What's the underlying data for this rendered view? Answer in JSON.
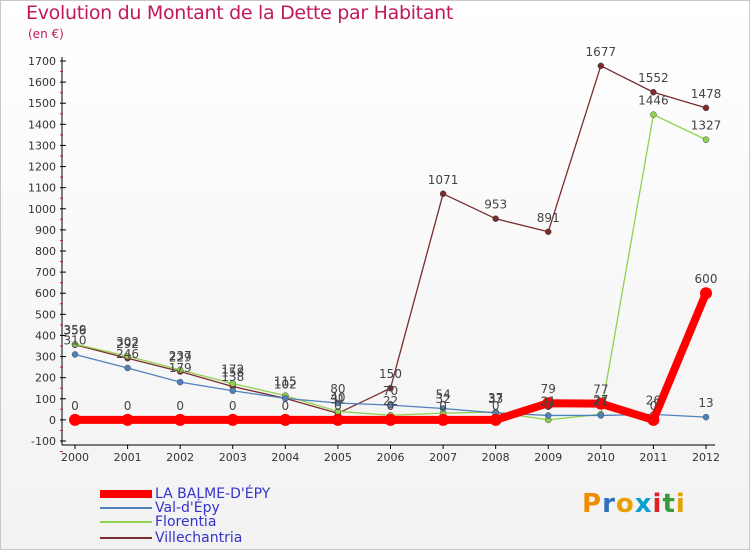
{
  "title": "Evolution du Montant de la Dette par Habitant",
  "unit": "(en €)",
  "legend": [
    {
      "label": "LA BALME-D'ÉPY",
      "color": "#ff0000",
      "width": 8
    },
    {
      "label": "Val-d'Épy",
      "color": "#4f81bd",
      "width": 1.5
    },
    {
      "label": "Florentia",
      "color": "#92d050",
      "width": 1.5
    },
    {
      "label": "Villechantria",
      "color": "#7b2c2c",
      "width": 1.5
    }
  ],
  "logo": {
    "text": "Proxiti",
    "colors": [
      "#f08c00",
      "#2f6fbf",
      "#e8a000",
      "#0aa0d0",
      "#e0212a",
      "#3a9a3a",
      "#e8a000"
    ]
  },
  "chart_data": {
    "type": "line",
    "title": "Evolution du Montant de la Dette par Habitant",
    "ylabel": "(en €)",
    "x": [
      2000,
      2001,
      2002,
      2003,
      2004,
      2005,
      2006,
      2007,
      2008,
      2009,
      2010,
      2011,
      2012
    ],
    "ylim": [
      -100,
      1700
    ],
    "yticks": [
      -100,
      0,
      100,
      200,
      300,
      400,
      500,
      600,
      700,
      800,
      900,
      1000,
      1100,
      1200,
      1300,
      1400,
      1500,
      1600,
      1700
    ],
    "grid": false,
    "legend_position": "bottom-left",
    "series": [
      {
        "name": "LA BALME-D'ÉPY",
        "color": "#ff0000",
        "values": [
          0,
          0,
          0,
          0,
          0,
          0,
          0,
          0,
          0,
          79,
          77,
          0,
          600
        ],
        "labels": [
          "0",
          "0",
          "0",
          "0",
          "0",
          "0",
          "0",
          "0",
          "0",
          "79",
          "77",
          "0",
          "600"
        ]
      },
      {
        "name": "Val-d'Épy",
        "color": "#4f81bd",
        "values": [
          310,
          246,
          179,
          138,
          102,
          80,
          70,
          54,
          33,
          21,
          21,
          26,
          13
        ],
        "labels": [
          "310",
          "246",
          "179",
          "138",
          "102",
          "80",
          "70",
          "54",
          "33",
          "21",
          "21",
          "26",
          "13"
        ]
      },
      {
        "name": "Florentia",
        "color": "#92d050",
        "values": [
          359,
          302,
          237,
          172,
          115,
          40,
          22,
          32,
          37,
          0,
          27,
          1446,
          1327
        ],
        "labels": [
          "359",
          "302",
          "237",
          "172",
          "115",
          "40",
          "22",
          "32",
          "37",
          "0",
          "27",
          "1446",
          "1327"
        ]
      },
      {
        "name": "Villechantria",
        "color": "#7b2c2c",
        "values": [
          356,
          292,
          229,
          158,
          102,
          31,
          150,
          1071,
          953,
          891,
          1677,
          1552,
          1478
        ],
        "labels": [
          "356",
          "292",
          "229",
          "158",
          "102",
          "31",
          "150",
          "1071",
          "953",
          "891",
          "1677",
          "1552",
          "1478"
        ]
      }
    ]
  }
}
